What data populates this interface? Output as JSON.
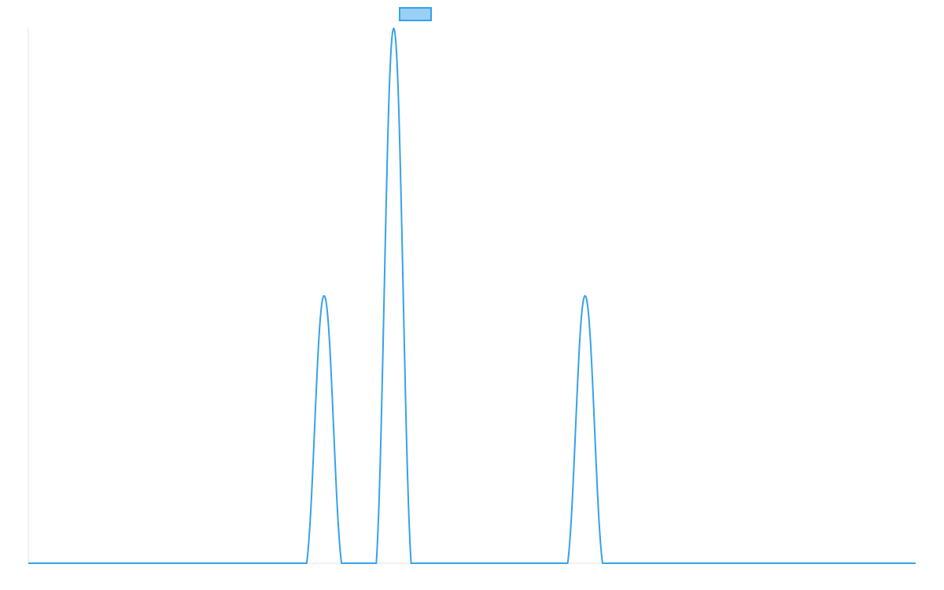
{
  "chart_data": {
    "type": "line",
    "x": [
      0,
      1,
      2,
      3,
      4,
      5,
      6,
      7,
      8,
      9,
      10,
      11,
      12,
      13,
      14,
      15,
      16,
      17,
      18,
      19,
      20,
      21,
      22,
      23,
      24,
      25,
      26,
      27,
      28,
      29,
      30,
      31,
      32,
      33,
      34,
      35,
      36,
      37,
      38,
      39,
      40,
      41,
      42,
      43,
      44,
      45,
      46,
      47,
      48,
      49,
      50,
      51
    ],
    "series": [
      {
        "name": "",
        "values": [
          0,
          0,
          0,
          0,
          0,
          0,
          0,
          0,
          0,
          0,
          0,
          0,
          0,
          0,
          0,
          0,
          0,
          1,
          0,
          0,
          0,
          2,
          0,
          0,
          0,
          0,
          0,
          0,
          0,
          0,
          0,
          0,
          1,
          0,
          0,
          0,
          0,
          0,
          0,
          0,
          0,
          0,
          0,
          0,
          0,
          0,
          0,
          0,
          0,
          0,
          0,
          0
        ],
        "color": "#36a2eb",
        "fill": "#9ad0f5"
      }
    ],
    "xlim": [
      0,
      51
    ],
    "ylim": [
      0,
      2
    ],
    "grid": false,
    "legend": "top-center",
    "title": "",
    "xlabel": "",
    "ylabel": ""
  }
}
